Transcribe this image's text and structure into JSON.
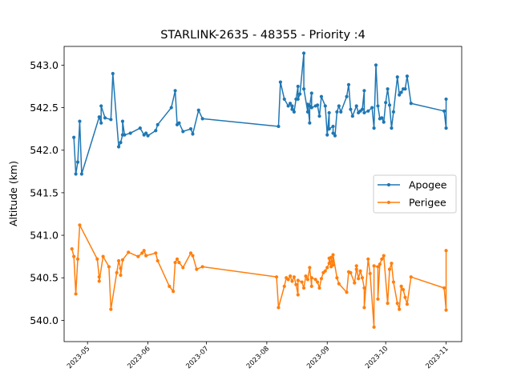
{
  "chart_data": {
    "type": "line",
    "title": "STARLINK-2635 - 48355 - Priority :4",
    "xlabel": "",
    "ylabel": "Altitude (km)",
    "ylim": [
      539.75,
      543.22
    ],
    "xlim": [
      "2023-04-19",
      "2023-11-09"
    ],
    "y_ticks": [
      540.0,
      540.5,
      541.0,
      541.5,
      542.0,
      542.5,
      543.0
    ],
    "y_tick_labels": [
      "540.0",
      "540.5",
      "541.0",
      "541.5",
      "542.0",
      "542.5",
      "543.0"
    ],
    "x_ticks": [
      "2023-05-01",
      "2023-06-01",
      "2023-07-01",
      "2023-08-01",
      "2023-09-01",
      "2023-10-01",
      "2023-11-01"
    ],
    "x_tick_labels": [
      "2023-05",
      "2023-06",
      "2023-07",
      "2023-08",
      "2023-09",
      "2023-10",
      "2023-11"
    ],
    "grid": false,
    "legend_position": "center-right",
    "series": [
      {
        "name": "Apogee",
        "color": "#1f77b4",
        "points": [
          [
            "2023-04-24",
            542.15
          ],
          [
            "2023-04-25",
            541.72
          ],
          [
            "2023-04-26",
            541.86
          ],
          [
            "2023-04-27",
            542.34
          ],
          [
            "2023-04-28",
            541.72
          ],
          [
            "2023-05-07",
            542.39
          ],
          [
            "2023-05-08",
            542.32
          ],
          [
            "2023-05-08",
            542.52
          ],
          [
            "2023-05-10",
            542.38
          ],
          [
            "2023-05-13",
            542.36
          ],
          [
            "2023-05-14",
            542.9
          ],
          [
            "2023-05-17",
            542.04
          ],
          [
            "2023-05-18",
            542.09
          ],
          [
            "2023-05-19",
            542.18
          ],
          [
            "2023-05-19",
            542.34
          ],
          [
            "2023-05-20",
            542.18
          ],
          [
            "2023-05-23",
            542.2
          ],
          [
            "2023-05-28",
            542.26
          ],
          [
            "2023-05-30",
            542.18
          ],
          [
            "2023-05-31",
            542.2
          ],
          [
            "2023-06-01",
            542.17
          ],
          [
            "2023-06-05",
            542.23
          ],
          [
            "2023-06-06",
            542.3
          ],
          [
            "2023-06-13",
            542.5
          ],
          [
            "2023-06-15",
            542.7
          ],
          [
            "2023-06-16",
            542.3
          ],
          [
            "2023-06-17",
            542.32
          ],
          [
            "2023-06-19",
            542.22
          ],
          [
            "2023-06-23",
            542.25
          ],
          [
            "2023-06-24",
            542.19
          ],
          [
            "2023-06-27",
            542.47
          ],
          [
            "2023-06-29",
            542.37
          ],
          [
            "2023-08-07",
            542.28
          ],
          [
            "2023-08-08",
            542.8
          ],
          [
            "2023-08-10",
            542.6
          ],
          [
            "2023-08-12",
            542.52
          ],
          [
            "2023-08-13",
            542.55
          ],
          [
            "2023-08-14",
            542.48
          ],
          [
            "2023-08-14",
            542.52
          ],
          [
            "2023-08-15",
            542.45
          ],
          [
            "2023-08-16",
            542.6
          ],
          [
            "2023-08-17",
            542.75
          ],
          [
            "2023-08-17",
            542.6
          ],
          [
            "2023-08-18",
            542.66
          ],
          [
            "2023-08-20",
            543.14
          ],
          [
            "2023-08-20",
            542.72
          ],
          [
            "2023-08-22",
            542.45
          ],
          [
            "2023-08-22",
            542.54
          ],
          [
            "2023-08-23",
            542.32
          ],
          [
            "2023-08-23",
            542.52
          ],
          [
            "2023-08-24",
            542.67
          ],
          [
            "2023-08-24",
            542.5
          ],
          [
            "2023-08-26",
            542.52
          ],
          [
            "2023-08-27",
            542.53
          ],
          [
            "2023-08-28",
            542.4
          ],
          [
            "2023-08-29",
            542.63
          ],
          [
            "2023-08-31",
            542.52
          ],
          [
            "2023-09-01",
            542.18
          ],
          [
            "2023-09-02",
            542.44
          ],
          [
            "2023-09-02",
            542.25
          ],
          [
            "2023-09-04",
            542.28
          ],
          [
            "2023-09-04",
            542.2
          ],
          [
            "2023-09-05",
            542.17
          ],
          [
            "2023-09-06",
            542.45
          ],
          [
            "2023-09-07",
            542.52
          ],
          [
            "2023-09-08",
            542.45
          ],
          [
            "2023-09-11",
            542.63
          ],
          [
            "2023-09-12",
            542.77
          ],
          [
            "2023-09-13",
            542.48
          ],
          [
            "2023-09-14",
            542.4
          ],
          [
            "2023-09-16",
            542.52
          ],
          [
            "2023-09-17",
            542.44
          ],
          [
            "2023-09-18",
            542.46
          ],
          [
            "2023-09-19",
            542.48
          ],
          [
            "2023-09-20",
            542.7
          ],
          [
            "2023-09-20",
            542.44
          ],
          [
            "2023-09-22",
            542.46
          ],
          [
            "2023-09-24",
            542.5
          ],
          [
            "2023-09-25",
            542.26
          ],
          [
            "2023-09-26",
            543.0
          ],
          [
            "2023-09-27",
            542.52
          ],
          [
            "2023-09-28",
            542.37
          ],
          [
            "2023-09-29",
            542.38
          ],
          [
            "2023-09-30",
            542.33
          ],
          [
            "2023-10-01",
            542.56
          ],
          [
            "2023-10-02",
            542.72
          ],
          [
            "2023-10-03",
            542.53
          ],
          [
            "2023-10-04",
            542.26
          ],
          [
            "2023-10-05",
            542.45
          ],
          [
            "2023-10-07",
            542.86
          ],
          [
            "2023-10-08",
            542.65
          ],
          [
            "2023-10-09",
            542.68
          ],
          [
            "2023-10-10",
            542.72
          ],
          [
            "2023-10-11",
            542.72
          ],
          [
            "2023-10-12",
            542.87
          ],
          [
            "2023-10-14",
            542.55
          ],
          [
            "2023-10-31",
            542.46
          ],
          [
            "2023-11-01",
            542.26
          ],
          [
            "2023-11-01",
            542.6
          ]
        ]
      },
      {
        "name": "Perigee",
        "color": "#ff7f0e",
        "points": [
          [
            "2023-04-23",
            540.84
          ],
          [
            "2023-04-24",
            540.75
          ],
          [
            "2023-04-25",
            540.31
          ],
          [
            "2023-04-26",
            540.72
          ],
          [
            "2023-04-27",
            541.12
          ],
          [
            "2023-05-06",
            540.72
          ],
          [
            "2023-05-07",
            540.51
          ],
          [
            "2023-05-07",
            540.46
          ],
          [
            "2023-05-09",
            540.75
          ],
          [
            "2023-05-12",
            540.63
          ],
          [
            "2023-05-13",
            540.13
          ],
          [
            "2023-05-16",
            540.56
          ],
          [
            "2023-05-17",
            540.7
          ],
          [
            "2023-05-18",
            540.61
          ],
          [
            "2023-05-18",
            540.53
          ],
          [
            "2023-05-19",
            540.71
          ],
          [
            "2023-05-22",
            540.8
          ],
          [
            "2023-05-27",
            540.75
          ],
          [
            "2023-05-29",
            540.79
          ],
          [
            "2023-05-30",
            540.82
          ],
          [
            "2023-05-31",
            540.76
          ],
          [
            "2023-06-05",
            540.79
          ],
          [
            "2023-06-06",
            540.7
          ],
          [
            "2023-06-12",
            540.4
          ],
          [
            "2023-06-14",
            540.34
          ],
          [
            "2023-06-15",
            540.68
          ],
          [
            "2023-06-16",
            540.72
          ],
          [
            "2023-06-17",
            540.68
          ],
          [
            "2023-06-19",
            540.62
          ],
          [
            "2023-06-23",
            540.79
          ],
          [
            "2023-06-24",
            540.76
          ],
          [
            "2023-06-26",
            540.6
          ],
          [
            "2023-06-29",
            540.63
          ],
          [
            "2023-08-06",
            540.51
          ],
          [
            "2023-08-07",
            540.15
          ],
          [
            "2023-08-10",
            540.4
          ],
          [
            "2023-08-11",
            540.5
          ],
          [
            "2023-08-12",
            540.48
          ],
          [
            "2023-08-13",
            540.52
          ],
          [
            "2023-08-14",
            540.46
          ],
          [
            "2023-08-15",
            540.51
          ],
          [
            "2023-08-16",
            540.42
          ],
          [
            "2023-08-17",
            540.3
          ],
          [
            "2023-08-17",
            540.47
          ],
          [
            "2023-08-19",
            540.45
          ],
          [
            "2023-08-20",
            540.38
          ],
          [
            "2023-08-21",
            540.52
          ],
          [
            "2023-08-22",
            540.48
          ],
          [
            "2023-08-23",
            540.62
          ],
          [
            "2023-08-24",
            540.4
          ],
          [
            "2023-08-24",
            540.5
          ],
          [
            "2023-08-26",
            540.48
          ],
          [
            "2023-08-27",
            540.45
          ],
          [
            "2023-08-28",
            540.38
          ],
          [
            "2023-08-29",
            540.49
          ],
          [
            "2023-08-30",
            540.56
          ],
          [
            "2023-08-31",
            540.58
          ],
          [
            "2023-09-01",
            540.62
          ],
          [
            "2023-09-02",
            540.67
          ],
          [
            "2023-09-02",
            540.73
          ],
          [
            "2023-09-03",
            540.63
          ],
          [
            "2023-09-03",
            540.74
          ],
          [
            "2023-09-04",
            540.65
          ],
          [
            "2023-09-04",
            540.77
          ],
          [
            "2023-09-06",
            540.5
          ],
          [
            "2023-09-07",
            540.43
          ],
          [
            "2023-09-11",
            540.33
          ],
          [
            "2023-09-12",
            540.57
          ],
          [
            "2023-09-13",
            540.56
          ],
          [
            "2023-09-15",
            540.44
          ],
          [
            "2023-09-16",
            540.6
          ],
          [
            "2023-09-16",
            540.64
          ],
          [
            "2023-09-17",
            540.49
          ],
          [
            "2023-09-18",
            540.58
          ],
          [
            "2023-09-19",
            540.5
          ],
          [
            "2023-09-20",
            540.38
          ],
          [
            "2023-09-20",
            540.15
          ],
          [
            "2023-09-22",
            540.72
          ],
          [
            "2023-09-23",
            540.55
          ],
          [
            "2023-09-25",
            539.92
          ],
          [
            "2023-09-25",
            540.64
          ],
          [
            "2023-09-27",
            540.63
          ],
          [
            "2023-09-27",
            540.25
          ],
          [
            "2023-09-28",
            540.66
          ],
          [
            "2023-09-29",
            540.72
          ],
          [
            "2023-09-30",
            540.76
          ],
          [
            "2023-10-02",
            540.2
          ],
          [
            "2023-10-03",
            540.6
          ],
          [
            "2023-10-04",
            540.67
          ],
          [
            "2023-10-05",
            540.45
          ],
          [
            "2023-10-07",
            540.2
          ],
          [
            "2023-10-08",
            540.13
          ],
          [
            "2023-10-09",
            540.4
          ],
          [
            "2023-10-10",
            540.36
          ],
          [
            "2023-10-11",
            540.27
          ],
          [
            "2023-10-12",
            540.19
          ],
          [
            "2023-10-14",
            540.51
          ],
          [
            "2023-10-31",
            540.38
          ],
          [
            "2023-11-01",
            540.12
          ],
          [
            "2023-11-01",
            540.82
          ]
        ]
      }
    ]
  }
}
